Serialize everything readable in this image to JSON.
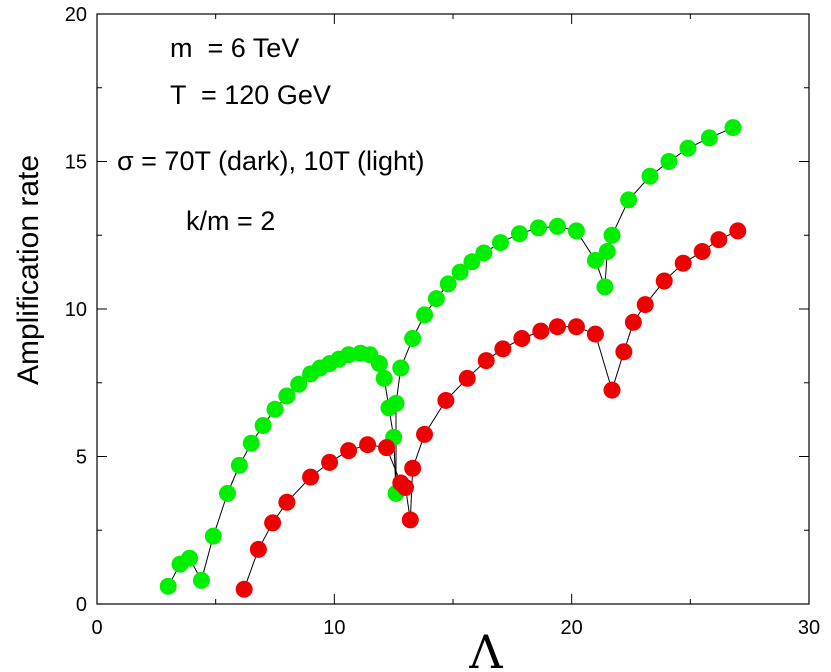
{
  "chart_data": {
    "type": "scatter",
    "xlabel": "Λ",
    "ylabel": "Amplification rate",
    "xlim": [
      0,
      30
    ],
    "ylim": [
      0,
      20
    ],
    "xticks": [
      "0",
      "10",
      "20",
      "30"
    ],
    "yticks": [
      "0",
      "5",
      "10",
      "15",
      "20"
    ],
    "grid": false,
    "annotations": [
      "m  = 6 TeV",
      "T  = 120 GeV",
      "σ = 70T (dark), 10T (light)",
      "k/m = 2"
    ],
    "series": [
      {
        "color": "#00ee00",
        "line_color": "#000000",
        "points": [
          [
            3.0,
            0.6
          ],
          [
            3.5,
            1.35
          ],
          [
            3.9,
            1.55
          ],
          [
            4.4,
            0.8
          ],
          [
            4.9,
            2.3
          ],
          [
            5.5,
            3.75
          ],
          [
            6.0,
            4.7
          ],
          [
            6.5,
            5.45
          ],
          [
            7.0,
            6.05
          ],
          [
            7.5,
            6.6
          ],
          [
            8.0,
            7.05
          ],
          [
            8.5,
            7.45
          ],
          [
            9.0,
            7.8
          ],
          [
            9.4,
            8.0
          ],
          [
            9.8,
            8.15
          ],
          [
            10.2,
            8.3
          ],
          [
            10.6,
            8.45
          ],
          [
            11.1,
            8.5
          ],
          [
            11.5,
            8.45
          ],
          [
            11.9,
            8.15
          ],
          [
            12.1,
            7.65
          ],
          [
            12.3,
            6.65
          ],
          [
            12.5,
            5.65
          ],
          [
            12.6,
            3.75
          ],
          [
            12.6,
            6.8
          ],
          [
            12.8,
            8.0
          ],
          [
            13.3,
            9.0
          ],
          [
            13.8,
            9.8
          ],
          [
            14.3,
            10.35
          ],
          [
            14.8,
            10.85
          ],
          [
            15.3,
            11.25
          ],
          [
            15.8,
            11.6
          ],
          [
            16.3,
            11.9
          ],
          [
            17.0,
            12.25
          ],
          [
            17.8,
            12.55
          ],
          [
            18.6,
            12.75
          ],
          [
            19.4,
            12.8
          ],
          [
            20.2,
            12.65
          ],
          [
            21.0,
            11.65
          ],
          [
            21.4,
            10.75
          ],
          [
            21.5,
            11.95
          ],
          [
            21.7,
            12.5
          ],
          [
            22.4,
            13.7
          ],
          [
            23.3,
            14.5
          ],
          [
            24.1,
            15.0
          ],
          [
            24.9,
            15.45
          ],
          [
            25.8,
            15.8
          ],
          [
            26.8,
            16.15
          ]
        ]
      },
      {
        "color": "#ee0000",
        "line_color": "#000000",
        "points": [
          [
            6.2,
            0.5
          ],
          [
            6.8,
            1.85
          ],
          [
            7.4,
            2.75
          ],
          [
            8.0,
            3.45
          ],
          [
            9.0,
            4.3
          ],
          [
            9.8,
            4.8
          ],
          [
            10.6,
            5.2
          ],
          [
            11.4,
            5.4
          ],
          [
            12.2,
            5.3
          ],
          [
            12.8,
            4.1
          ],
          [
            13.0,
            3.95
          ],
          [
            13.2,
            2.85
          ],
          [
            13.3,
            4.6
          ],
          [
            13.8,
            5.75
          ],
          [
            14.7,
            6.9
          ],
          [
            15.6,
            7.65
          ],
          [
            16.4,
            8.25
          ],
          [
            17.1,
            8.65
          ],
          [
            17.9,
            9.0
          ],
          [
            18.7,
            9.25
          ],
          [
            19.4,
            9.4
          ],
          [
            20.2,
            9.4
          ],
          [
            21.0,
            9.15
          ],
          [
            21.7,
            7.25
          ],
          [
            22.2,
            8.55
          ],
          [
            22.6,
            9.55
          ],
          [
            23.1,
            10.15
          ],
          [
            23.9,
            10.95
          ],
          [
            24.7,
            11.55
          ],
          [
            25.5,
            11.95
          ],
          [
            26.2,
            12.35
          ],
          [
            27.0,
            12.65
          ]
        ]
      }
    ]
  }
}
